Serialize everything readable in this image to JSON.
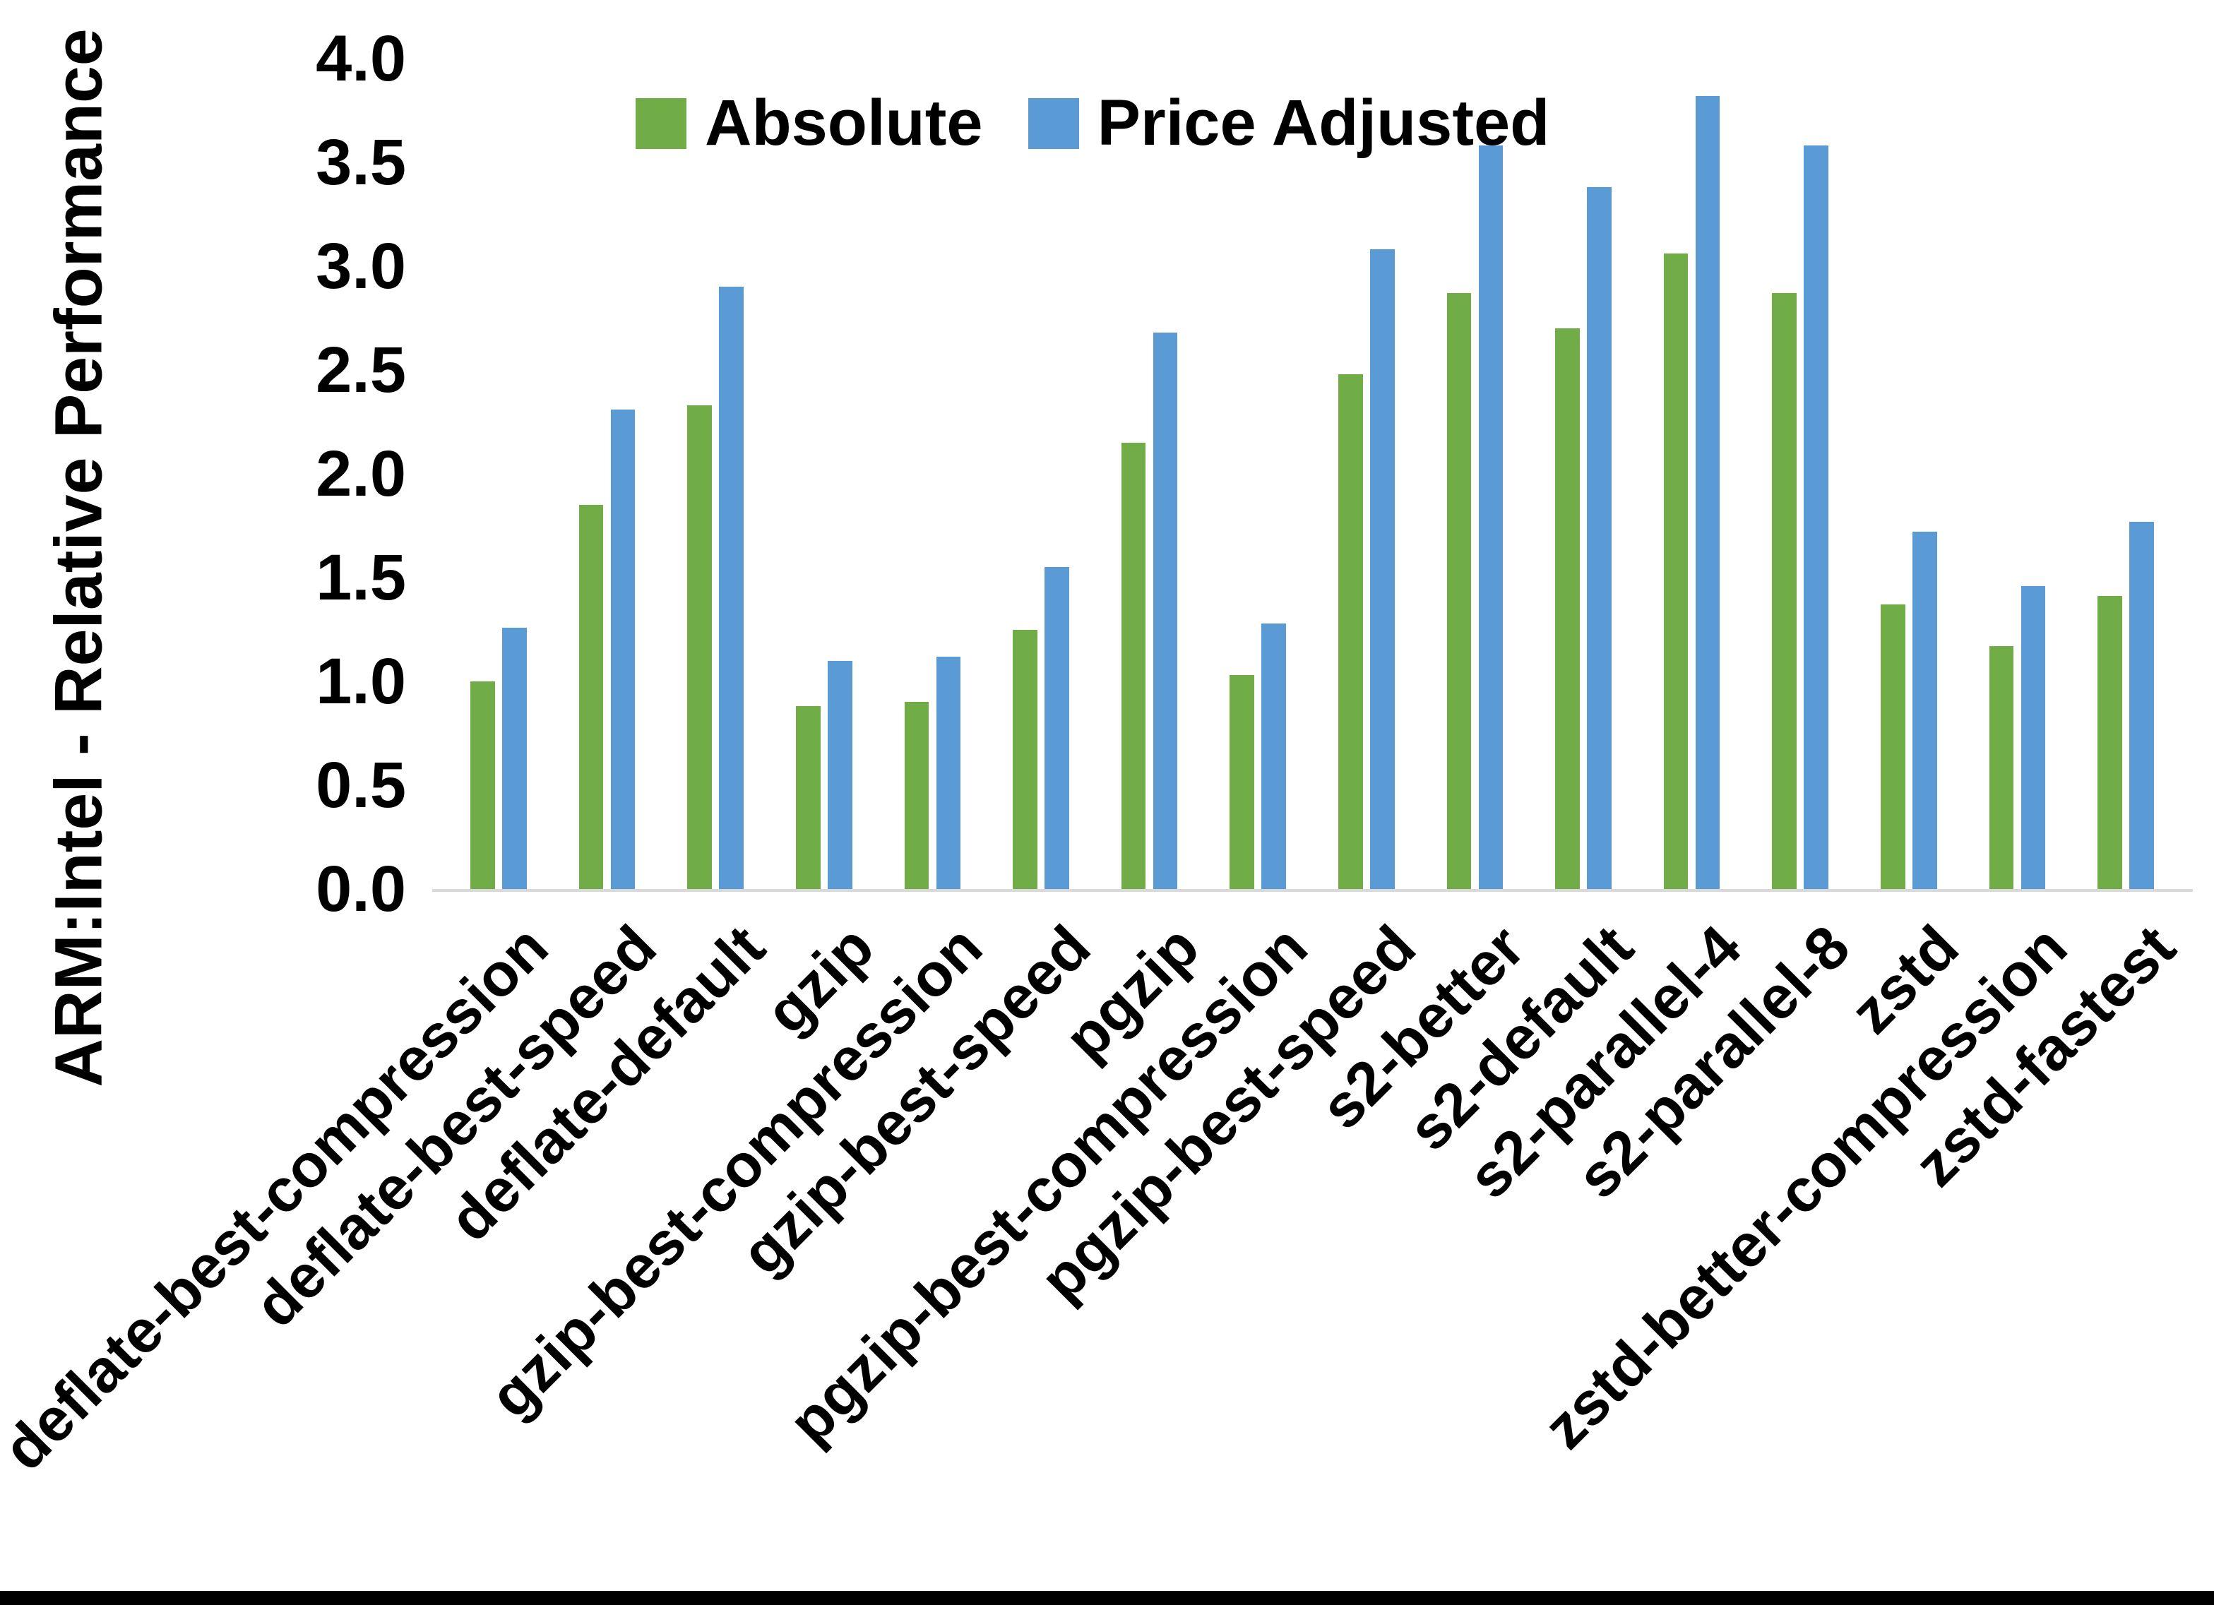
{
  "chart_data": {
    "type": "bar",
    "title": "",
    "ylabel": "ARM:Intel - Relative Performance",
    "xlabel": "",
    "ylim": [
      0.0,
      4.0
    ],
    "ytick_step": 0.5,
    "ytick_labels": [
      "0.0",
      "0.5",
      "1.0",
      "1.5",
      "2.0",
      "2.5",
      "3.0",
      "3.5",
      "4.0"
    ],
    "grid": false,
    "legend_position": "top-center",
    "categories": [
      "deflate-best-compression",
      "deflate-best-speed",
      "deflate-default",
      "gzip",
      "gzip-best-compression",
      "gzip-best-speed",
      "pgzip",
      "pgzip-best-compression",
      "pgzip-best-speed",
      "s2-better",
      "s2-default",
      "s2-parallel-4",
      "s2-parallel-8",
      "zstd",
      "zstd-better-compression",
      "zstd-fastest"
    ],
    "series": [
      {
        "name": "Absolute",
        "color": "#70AD47",
        "values": [
          1.0,
          1.85,
          2.33,
          0.88,
          0.9,
          1.25,
          2.15,
          1.03,
          2.48,
          2.87,
          2.7,
          3.06,
          2.87,
          1.37,
          1.17,
          1.41
        ]
      },
      {
        "name": "Price Adjusted",
        "color": "#5B9BD5",
        "values": [
          1.26,
          2.31,
          2.9,
          1.1,
          1.12,
          1.55,
          2.68,
          1.28,
          3.08,
          3.58,
          3.38,
          3.82,
          3.58,
          1.72,
          1.46,
          1.77
        ]
      }
    ],
    "axis_line_color": "#D9D9D9",
    "text_color": "#000000"
  }
}
